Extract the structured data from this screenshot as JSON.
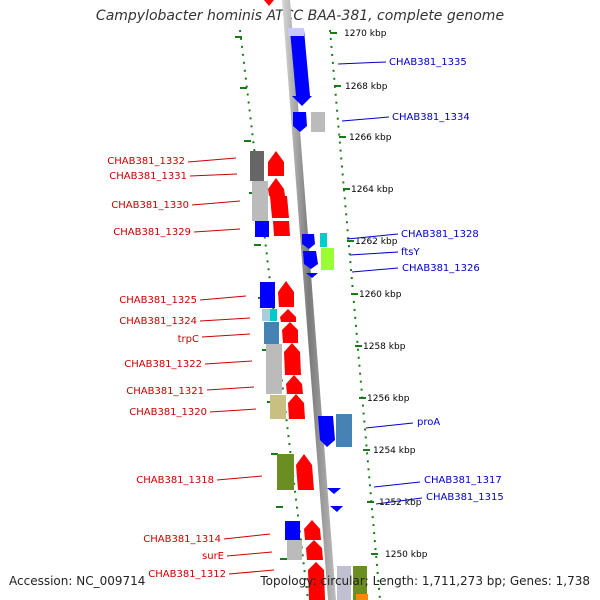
{
  "title": "Campylobacter hominis ATCC BAA-381, complete genome",
  "footer": {
    "accession": "Accession: NC_009714",
    "summary": "Topology: circular; Length: 1,711,273 bp; Genes: 1,738"
  },
  "colors": {
    "forward_strand": "#ff0000",
    "reverse_strand": "#0000ff",
    "forward_label": "#cc0000",
    "reverse_label": "#0000cc",
    "backbone": "#808080",
    "scale_ticks": "#1a7a1a"
  },
  "scale_ticks": [
    "1270 kbp",
    "1268 kbp",
    "1266 kbp",
    "1264 kbp",
    "1262 kbp",
    "1260 kbp",
    "1258 kbp",
    "1256 kbp",
    "1254 kbp",
    "1252 kbp",
    "1250 kbp"
  ],
  "forward_labels": [
    "CHAB381_1332",
    "CHAB381_1331",
    "CHAB381_1330",
    "CHAB381_1329",
    "CHAB381_1325",
    "CHAB381_1324",
    "trpC",
    "CHAB381_1322",
    "CHAB381_1321",
    "CHAB381_1320",
    "CHAB381_1318",
    "CHAB381_1314",
    "surE",
    "CHAB381_1312"
  ],
  "reverse_labels": [
    "CHAB381_1335",
    "CHAB381_1334",
    "CHAB381_1328",
    "ftsY",
    "CHAB381_1326",
    "proA",
    "CHAB381_1317",
    "CHAB381_1315"
  ]
}
